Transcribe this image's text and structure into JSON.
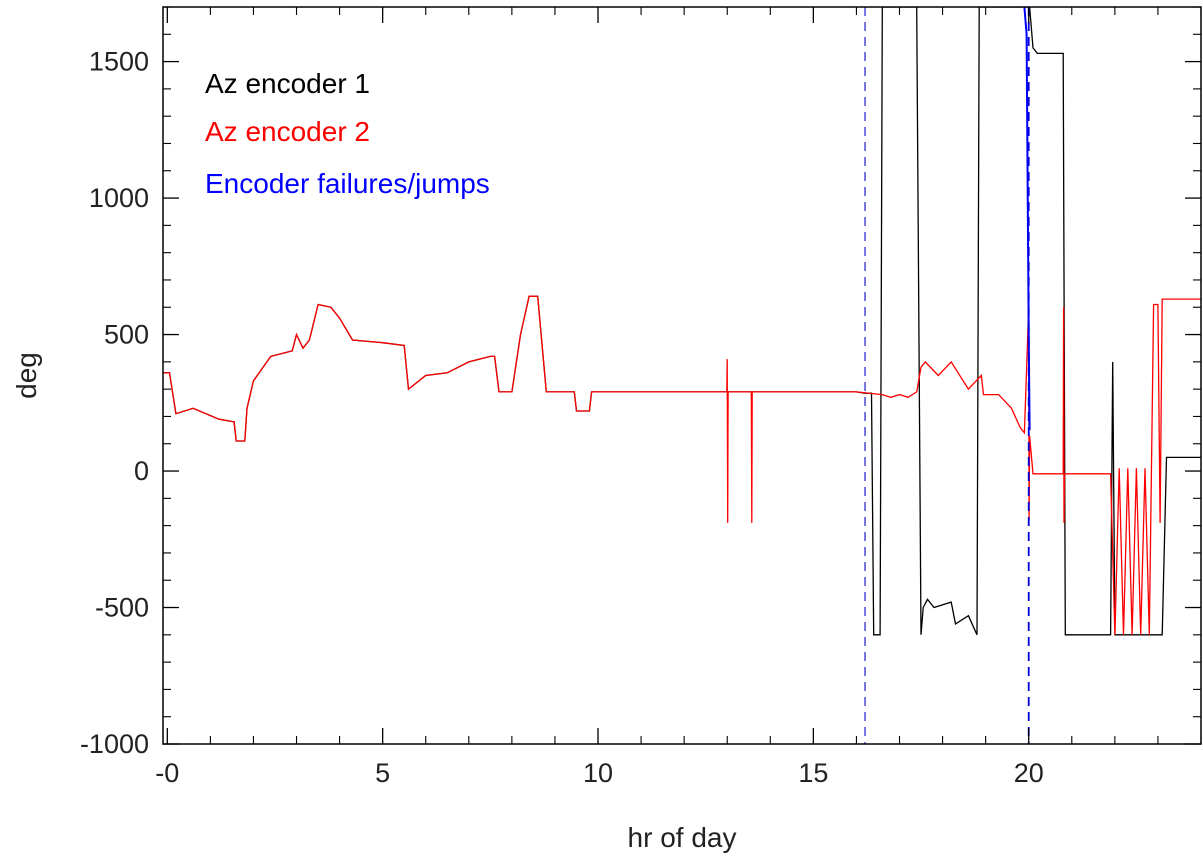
{
  "chart_data": {
    "type": "line",
    "title": "",
    "xlabel": "hr of day",
    "ylabel": "deg",
    "xlim": [
      -0.1,
      24
    ],
    "ylim": [
      -1000,
      1700
    ],
    "xticks": [
      0,
      5,
      10,
      15,
      20
    ],
    "xtick_labels": [
      "-0",
      "5",
      "10",
      "15",
      "20"
    ],
    "yticks": [
      1500,
      1000,
      500,
      0,
      -500,
      -1000
    ],
    "ytick_labels": [
      "1500",
      "1000",
      "500",
      "0",
      "-500",
      "-1000"
    ],
    "grid": false,
    "legend_placement": "top-left",
    "legend": [
      {
        "label": "Az encoder 1",
        "color": "#000000"
      },
      {
        "label": "Az encoder 2",
        "color": "#ff0000"
      },
      {
        "label": "Encoder failures/jumps",
        "color": "#0000ff"
      }
    ],
    "series": [
      {
        "name": "Az encoder 1",
        "color": "#000000",
        "x": [
          -0.1,
          0.05,
          0.2,
          0.6,
          1.2,
          1.55,
          1.6,
          1.8,
          1.85,
          2.0,
          2.4,
          2.9,
          3.0,
          3.15,
          3.3,
          3.5,
          3.8,
          4.0,
          4.3,
          5.0,
          5.5,
          5.6,
          6.0,
          6.5,
          7.0,
          7.5,
          7.6,
          7.7,
          8.0,
          8.2,
          8.4,
          8.6,
          8.8,
          9.0,
          9.3,
          9.45,
          9.5,
          9.8,
          9.85,
          12.0,
          15.0,
          16.0,
          16.2,
          16.35,
          16.4,
          16.5,
          16.55,
          16.6,
          17.4,
          17.5,
          17.55,
          17.65,
          17.8,
          18.2,
          18.3,
          18.6,
          18.8,
          18.85,
          18.9,
          19.9,
          19.95,
          20.0,
          20.02,
          20.1,
          20.2,
          20.8,
          20.85,
          21.9,
          21.95,
          22.0,
          23.1,
          23.2,
          24.0
        ],
        "y": [
          360,
          360,
          210,
          230,
          190,
          180,
          110,
          110,
          230,
          330,
          420,
          440,
          500,
          450,
          480,
          610,
          600,
          560,
          480,
          470,
          460,
          300,
          350,
          360,
          400,
          420,
          420,
          290,
          290,
          500,
          640,
          640,
          290,
          290,
          290,
          290,
          220,
          220,
          290,
          290,
          290,
          290,
          285,
          285,
          -600,
          -600,
          -600,
          1700,
          1700,
          -600,
          -500,
          -470,
          -500,
          -480,
          -560,
          -530,
          -600,
          1700,
          1700,
          1700,
          1700,
          1700,
          1700,
          1550,
          1530,
          1530,
          -600,
          -600,
          400,
          -600,
          -600,
          50,
          50
        ]
      },
      {
        "name": "Az encoder 2",
        "color": "#ff0000",
        "x": [
          -0.1,
          0.05,
          0.2,
          0.6,
          1.2,
          1.55,
          1.6,
          1.8,
          1.85,
          2.0,
          2.4,
          2.9,
          3.0,
          3.15,
          3.3,
          3.5,
          3.8,
          4.0,
          4.3,
          5.0,
          5.5,
          5.6,
          6.0,
          6.5,
          7.0,
          7.5,
          7.6,
          7.7,
          8.0,
          8.2,
          8.4,
          8.6,
          8.8,
          9.0,
          9.3,
          9.45,
          9.5,
          9.8,
          9.85,
          12.99,
          13.0,
          13.01,
          13.02,
          13.55,
          13.56,
          13.57,
          13.58,
          16.0,
          16.6,
          16.8,
          17.0,
          17.2,
          17.4,
          17.5,
          17.6,
          17.9,
          18.2,
          18.6,
          18.9,
          18.95,
          19.3,
          19.6,
          19.8,
          19.9,
          20.0,
          20.01,
          20.02,
          20.1,
          20.15,
          20.8,
          20.81,
          20.82,
          20.83,
          21.9,
          22.0,
          22.1,
          22.2,
          22.3,
          22.4,
          22.5,
          22.6,
          22.7,
          22.8,
          22.9,
          23.0,
          23.05,
          23.1,
          23.15,
          23.2,
          24.0
        ],
        "y": [
          360,
          360,
          210,
          230,
          190,
          180,
          110,
          110,
          230,
          330,
          420,
          440,
          500,
          450,
          480,
          610,
          600,
          560,
          480,
          470,
          460,
          300,
          350,
          360,
          400,
          420,
          420,
          290,
          290,
          500,
          640,
          640,
          290,
          290,
          290,
          290,
          220,
          220,
          290,
          290,
          410,
          -190,
          290,
          290,
          290,
          -190,
          290,
          290,
          280,
          270,
          280,
          270,
          290,
          380,
          400,
          350,
          400,
          300,
          350,
          280,
          280,
          230,
          160,
          140,
          600,
          -180,
          130,
          -10,
          -10,
          -10,
          600,
          -190,
          -10,
          -10,
          -600,
          10,
          -600,
          10,
          -600,
          10,
          -600,
          10,
          -600,
          610,
          610,
          -190,
          630,
          630,
          630,
          630
        ]
      },
      {
        "name": "Encoder failures/jumps",
        "color": "#0000ff",
        "x": [
          19.9,
          19.95,
          20.0,
          20.02
        ],
        "y": [
          1700,
          1600,
          500,
          150
        ]
      }
    ],
    "vlines": [
      {
        "x": 16.2,
        "color": "#6666dd",
        "style": "dashed"
      },
      {
        "x": 20.0,
        "color": "#0000dd",
        "style": "dashed"
      }
    ]
  }
}
